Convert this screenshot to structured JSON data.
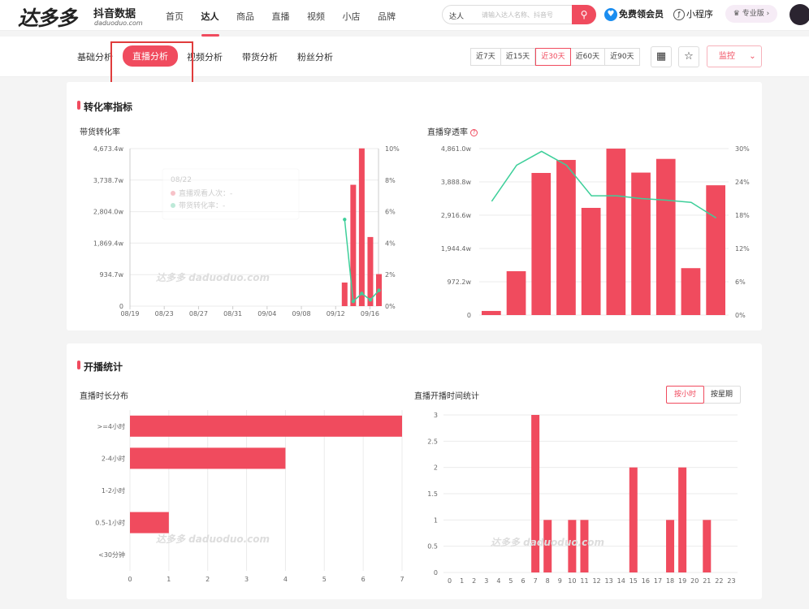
{
  "app": {
    "logo": "达多多",
    "logo_sub": "抖音数据",
    "logo_url": "daduoduo.com"
  },
  "nav": {
    "items": [
      "首页",
      "达人",
      "商品",
      "直播",
      "视频",
      "小店",
      "品牌"
    ],
    "active": 1
  },
  "search": {
    "select": "达人",
    "placeholder": "请输入达人名称、抖音号",
    "button_icon": "search-icon"
  },
  "header_right": {
    "vip": "免费领会员",
    "mini": "小程序",
    "pro": "专业版"
  },
  "subtabs": {
    "items": [
      "基础分析",
      "直播分析",
      "视频分析",
      "带货分析",
      "粉丝分析"
    ],
    "active": 1
  },
  "periods": {
    "items": [
      "近7天",
      "近15天",
      "近30天",
      "近60天",
      "近90天"
    ],
    "active": 2
  },
  "monitor": "监控",
  "accent": "#f04b5e",
  "section1": {
    "title": "转化率指标",
    "chart1": {
      "title": "带货转化率",
      "watermark": "达多多 daduoduo.com",
      "tooltip": {
        "date": "08/22",
        "row1": "直播观看人次：-",
        "row2": "带货转化率：-"
      }
    },
    "chart2": {
      "title": "直播穿透率",
      "help_icon": "question-icon"
    }
  },
  "section2": {
    "title": "开播统计",
    "chart3": {
      "title": "直播时长分布",
      "watermark": "达多多 daduoduo.com"
    },
    "chart4": {
      "title": "直播开播时间统计",
      "toggle": [
        "按小时",
        "按星期"
      ],
      "toggle_active": 0,
      "watermark": "达多多 daduoduo.com"
    }
  },
  "chart_data": [
    {
      "type": "bar",
      "name": "带货转化率",
      "x_ticks": [
        "08/19",
        "08/23",
        "08/27",
        "08/31",
        "09/04",
        "09/08",
        "09/12",
        "09/16"
      ],
      "y_ticks_left": [
        "0",
        "934.7w",
        "1,869.4w",
        "2,804.0w",
        "3,738.7w",
        "4,673.4w"
      ],
      "y_ticks_right": [
        "0%",
        "2%",
        "4%",
        "6%",
        "8%",
        "10%"
      ],
      "ylim_left": [
        0,
        4673.4
      ],
      "ylim_right": [
        0,
        10
      ],
      "x_days": [
        "09/13",
        "09/14",
        "09/15",
        "09/16",
        "09/17"
      ],
      "bars": [
        700,
        3600,
        4680,
        2050,
        950
      ],
      "line_dates": [
        "09/13",
        "09/14",
        "09/15",
        "09/16",
        "09/17"
      ],
      "line": [
        5.5,
        0.3,
        0.8,
        0.4,
        1.0
      ]
    },
    {
      "type": "bar",
      "name": "直播穿透率",
      "y_ticks_left": [
        "0",
        "972.2w",
        "1,944.4w",
        "2,916.6w",
        "3,888.8w",
        "4,861.0w"
      ],
      "y_ticks_right": [
        "0%",
        "6%",
        "12%",
        "18%",
        "24%",
        "30%"
      ],
      "ylim_left": [
        0,
        4861
      ],
      "ylim_right": [
        0,
        30
      ],
      "bars": [
        120,
        1280,
        4150,
        4530,
        3130,
        4860,
        4160,
        4560,
        1370,
        3790
      ],
      "line": [
        20.5,
        27,
        29.5,
        27,
        21.5,
        21.5,
        21,
        20.7,
        20.3,
        17.5
      ]
    },
    {
      "type": "bar",
      "orientation": "horizontal",
      "name": "直播时长分布",
      "categories": [
        ">=4小时",
        "2-4小时",
        "1-2小时",
        "0.5-1小时",
        "<30分钟"
      ],
      "values": [
        7,
        4,
        0,
        1,
        0
      ],
      "xlim": [
        0,
        7
      ],
      "x_ticks": [
        "0",
        "1",
        "2",
        "3",
        "4",
        "5",
        "6",
        "7"
      ]
    },
    {
      "type": "bar",
      "name": "直播开播时间统计",
      "categories": [
        "0",
        "1",
        "2",
        "3",
        "4",
        "5",
        "6",
        "7",
        "8",
        "9",
        "10",
        "11",
        "12",
        "13",
        "14",
        "15",
        "16",
        "17",
        "18",
        "19",
        "20",
        "21",
        "22",
        "23"
      ],
      "values": [
        0,
        0,
        0,
        0,
        0,
        0,
        0,
        3,
        1,
        0,
        1,
        1,
        0,
        0,
        0,
        2,
        0,
        0,
        1,
        2,
        0,
        1,
        0,
        0
      ],
      "ylim": [
        0,
        3
      ],
      "y_ticks": [
        "0",
        "0.5",
        "1",
        "1.5",
        "2",
        "2.5",
        "3"
      ]
    }
  ]
}
